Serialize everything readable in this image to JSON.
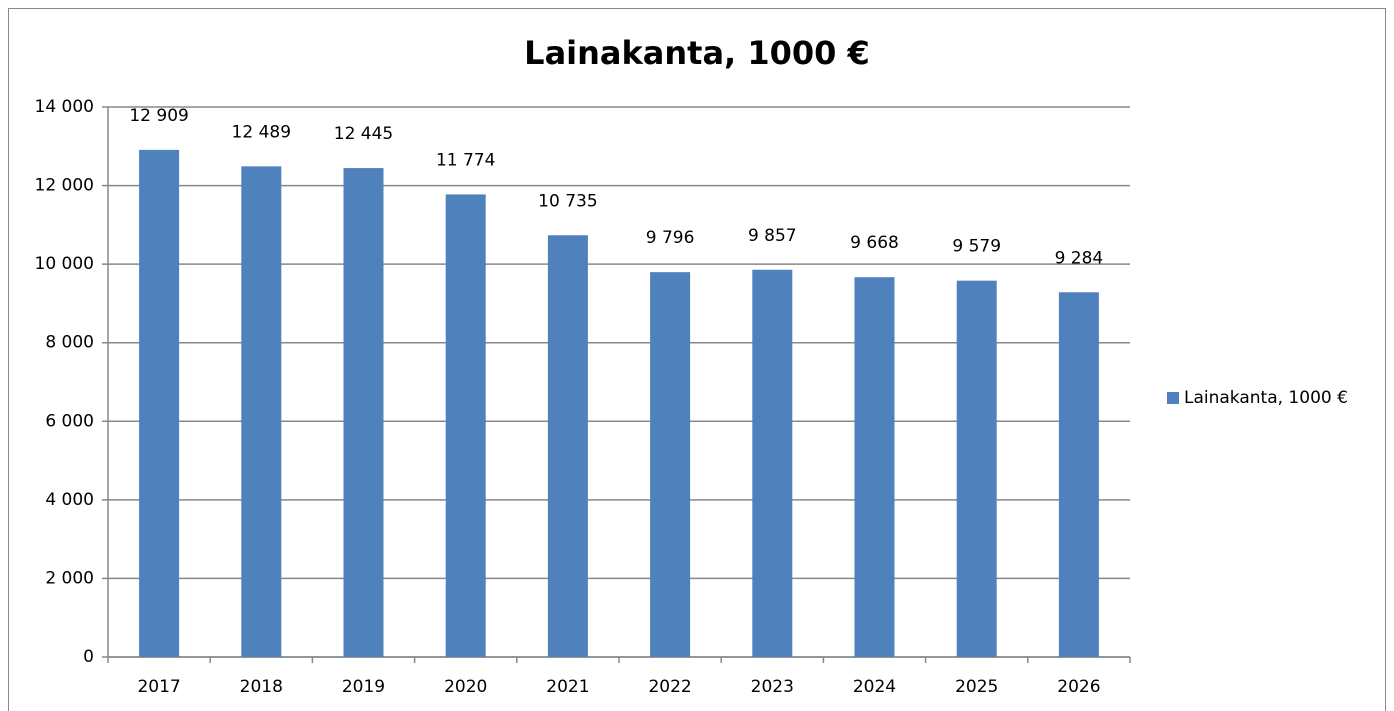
{
  "chart_data": {
    "type": "bar",
    "title": "Lainakanta, 1000 €",
    "categories": [
      "2017",
      "2018",
      "2019",
      "2020",
      "2021",
      "2022",
      "2023",
      "2024",
      "2025",
      "2026"
    ],
    "series": [
      {
        "name": "Lainakanta, 1000 €",
        "color": "#4f81bd",
        "values": [
          12909,
          12489,
          12445,
          11774,
          10735,
          9796,
          9857,
          9668,
          9579,
          9284
        ],
        "value_labels": [
          "12 909",
          "12 489",
          "12 445",
          "11 774",
          "10 735",
          "9 796",
          "9 857",
          "9 668",
          "9 579",
          "9 284"
        ]
      }
    ],
    "ylim": [
      0,
      14000
    ],
    "yticks": [
      0,
      {
        "value": 2000,
        "label": "2 000"
      },
      {
        "value": 4000,
        "label": "4 000"
      },
      {
        "value": 6000,
        "label": "6 000"
      },
      {
        "value": 8000,
        "label": "8 000"
      },
      {
        "value": 10000,
        "label": "10 000"
      },
      {
        "value": 12000,
        "label": "12 000"
      },
      {
        "value": 14000,
        "label": "14 000"
      }
    ],
    "grid": true,
    "legend": "right"
  }
}
